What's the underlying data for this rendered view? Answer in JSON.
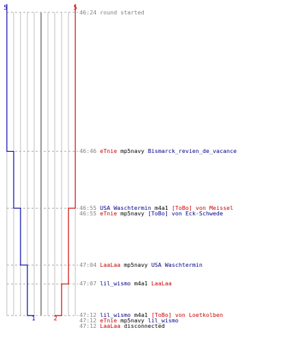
{
  "colors": {
    "team_blue": "#0000aa",
    "team_red": "#cc0000",
    "grid": "#bdbdbd",
    "center": "#6b6b6b",
    "time": "#808080",
    "name_red": "#cc0000",
    "name_blue": "#00008b"
  },
  "labels": {
    "blue_top": "5",
    "red_top": "5",
    "blue_bottom": "1",
    "red_bottom": "2"
  },
  "chart_data": {
    "type": "line",
    "x_axis": "players remaining",
    "y_axis": "time",
    "series": [
      {
        "team": "blue",
        "steps": [
          {
            "time": "46:24",
            "players": 5
          },
          {
            "time": "46:46",
            "players": 4
          },
          {
            "time": "46:55",
            "players": 3
          },
          {
            "time": "47:04",
            "players": 2
          },
          {
            "time": "47:12",
            "players": 1
          }
        ]
      },
      {
        "team": "red",
        "steps": [
          {
            "time": "46:24",
            "players": 5
          },
          {
            "time": "46:55",
            "players": 4
          },
          {
            "time": "47:07",
            "players": 3
          },
          {
            "time": "47:12",
            "players": 2
          }
        ]
      }
    ]
  },
  "log": [
    {
      "time": "46:24",
      "parts": [
        {
          "text": "round started",
          "color": "gray"
        }
      ]
    },
    {
      "time": "46:46",
      "parts": [
        {
          "text": "eTnie",
          "color": "red"
        },
        {
          "text": " mp5navy ",
          "color": "black"
        },
        {
          "text": "Bismarck_revien_de_vacance",
          "color": "blue"
        }
      ]
    },
    {
      "time": "46:55",
      "parts": [
        {
          "text": "USA Waschtermin",
          "color": "blue"
        },
        {
          "text": " m4a1 ",
          "color": "black"
        },
        {
          "text": "[ToBo] von Meissel",
          "color": "red"
        }
      ]
    },
    {
      "time": "46:55",
      "parts": [
        {
          "text": "eTnie",
          "color": "red"
        },
        {
          "text": " mp5navy ",
          "color": "black"
        },
        {
          "text": "[ToBo] von Eck-Schwede",
          "color": "blue"
        }
      ]
    },
    {
      "time": "47:04",
      "parts": [
        {
          "text": "LaaLaa",
          "color": "red"
        },
        {
          "text": " mp5navy ",
          "color": "black"
        },
        {
          "text": "USA Waschtermin",
          "color": "blue"
        }
      ]
    },
    {
      "time": "47:07",
      "parts": [
        {
          "text": "lil_wismo",
          "color": "blue"
        },
        {
          "text": " m4a1 ",
          "color": "black"
        },
        {
          "text": "LaaLaa",
          "color": "red"
        }
      ]
    },
    {
      "time": "47:12",
      "parts": [
        {
          "text": "lil_wismo",
          "color": "blue"
        },
        {
          "text": " m4a1 ",
          "color": "black"
        },
        {
          "text": "[ToBo] von Loetkolben",
          "color": "red"
        }
      ]
    },
    {
      "time": "47:12",
      "parts": [
        {
          "text": "eTnie",
          "color": "red"
        },
        {
          "text": " mp5navy ",
          "color": "black"
        },
        {
          "text": "lil_wismo",
          "color": "blue"
        }
      ]
    },
    {
      "time": "47:12",
      "parts": [
        {
          "text": "LaaLaa",
          "color": "red"
        },
        {
          "text": " disconnected",
          "color": "black"
        }
      ]
    }
  ]
}
